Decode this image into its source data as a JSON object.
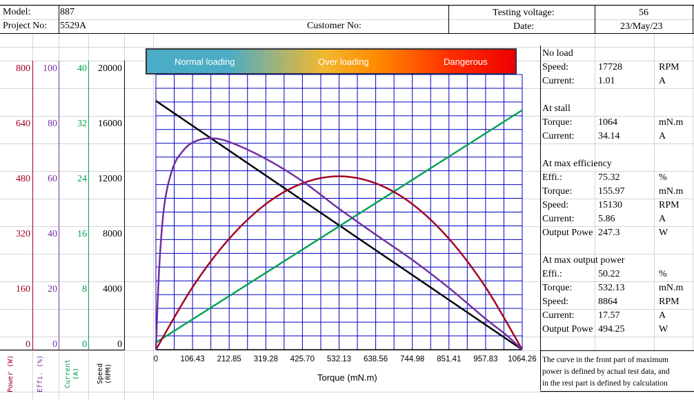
{
  "header": {
    "model_label": "Model:",
    "model_value": "887",
    "project_label": "Project No:",
    "project_value": "5529A",
    "customer_label": "Customer No:",
    "voltage_label": "Testing voltage:",
    "voltage_value": "56",
    "date_label": "Date:",
    "date_value": "23/May/23"
  },
  "banner": {
    "normal": "Normal loading",
    "over": "Over loading",
    "danger": "Dangerous"
  },
  "left_axes": {
    "power": {
      "label": "Power (W)",
      "color": "#a50021",
      "ticks": [
        "800",
        "640",
        "480",
        "320",
        "160",
        "0"
      ]
    },
    "effi": {
      "label": "Effi. (%)",
      "color": "#7030a0",
      "ticks": [
        "100",
        "80",
        "60",
        "40",
        "20",
        "0"
      ]
    },
    "current": {
      "label": "Current (A)",
      "color": "#00a050",
      "ticks": [
        "40",
        "32",
        "24",
        "16",
        "8",
        "0"
      ]
    },
    "speed": {
      "label": "Speed (RPM)",
      "color": "#000000",
      "ticks": [
        "20000",
        "16000",
        "12000",
        "8000",
        "4000",
        "0"
      ]
    }
  },
  "panel": {
    "no_load": {
      "title": "No load",
      "speed_label": "Speed:",
      "speed_value": "17728",
      "speed_unit": "RPM",
      "current_label": "Current:",
      "current_value": "1.01",
      "current_unit": "A"
    },
    "stall": {
      "title": "At stall",
      "torque_label": "Torque:",
      "torque_value": "1064",
      "torque_unit": "mN.m",
      "current_label": "Current:",
      "current_value": "34.14",
      "current_unit": "A"
    },
    "max_eff": {
      "title": "At max efficiency",
      "effi_label": "Effi.:",
      "effi_value": "75.32",
      "effi_unit": "%",
      "torque_label": "Torque:",
      "torque_value": "155.97",
      "torque_unit": "mN.m",
      "speed_label": "Speed:",
      "speed_value": "15130",
      "speed_unit": "RPM",
      "current_label": "Current:",
      "current_value": "5.86",
      "current_unit": "A",
      "power_label": "Output Powe",
      "power_value": "247.3",
      "power_unit": "W"
    },
    "max_power": {
      "title": "At max output power",
      "effi_label": "Effi.:",
      "effi_value": "50.22",
      "effi_unit": "%",
      "torque_label": "Torque:",
      "torque_value": "532.13",
      "torque_unit": "mN.m",
      "speed_label": "Speed:",
      "speed_value": "8864",
      "speed_unit": "RPM",
      "current_label": "Current:",
      "current_value": "17.57",
      "current_unit": "A",
      "power_label": "Output Powe",
      "power_value": "494.25",
      "power_unit": "W"
    },
    "note1": "The curve in the front part of maximum",
    "note2": "power is defined by actual test data, and",
    "note3": "in the rest part is defined by calculation"
  },
  "chart_data": {
    "type": "line",
    "xlabel": "Torque (mN.m)",
    "x_ticks": [
      "0",
      "106.43",
      "212.85",
      "319.28",
      "425.70",
      "532.13",
      "638.56",
      "744.98",
      "851.41",
      "957.83",
      "1064.26"
    ],
    "xlim": [
      0,
      1064.26
    ],
    "grid": true,
    "series": [
      {
        "color": "#000000",
        "axis": "speed",
        "ymax": 20000,
        "x": [
          0,
          1064.26
        ],
        "values": [
          17728,
          0
        ]
      },
      {
        "color": "#00a050",
        "axis": "current",
        "ymax": 40,
        "x": [
          0,
          1064.26
        ],
        "values": [
          1.01,
          34.14
        ]
      },
      {
        "color": "#a50021",
        "axis": "power",
        "ymax": 800,
        "x": [
          0,
          106.43,
          212.85,
          319.28,
          425.7,
          532.13,
          638.56,
          744.98,
          851.41,
          957.83,
          1064.26
        ],
        "values": [
          0,
          178,
          316,
          415,
          474,
          494,
          474,
          415,
          316,
          178,
          0
        ]
      },
      {
        "color": "#7030a0",
        "axis": "effi",
        "ymax": 100,
        "x": [
          0,
          10,
          25,
          50,
          80,
          110,
          155.97,
          212.85,
          319.28,
          425.7,
          532.13,
          638.56,
          744.98,
          851.41,
          957.83,
          1020,
          1064.26
        ],
        "values": [
          0,
          30,
          52,
          65,
          71,
          74,
          75.32,
          74,
          68,
          60,
          50.22,
          41,
          32,
          22,
          11,
          5,
          0
        ]
      }
    ]
  }
}
